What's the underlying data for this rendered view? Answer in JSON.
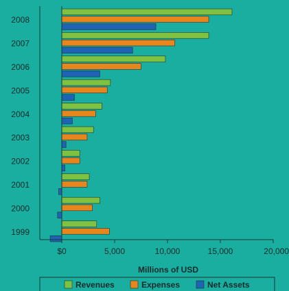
{
  "chart_data": {
    "type": "bar",
    "orientation": "horizontal",
    "categories": [
      "2008",
      "2007",
      "2006",
      "2005",
      "2004",
      "2003",
      "2002",
      "2001",
      "2000",
      "1999"
    ],
    "series": [
      {
        "name": "Revenues",
        "color": "#7fc241",
        "values": [
          16100,
          13900,
          9800,
          4600,
          3800,
          3000,
          1700,
          2600,
          3600,
          3300
        ]
      },
      {
        "name": "Expenses",
        "color": "#e8861e",
        "values": [
          13900,
          10700,
          7500,
          4300,
          3200,
          2400,
          1700,
          2400,
          2900,
          4500
        ]
      },
      {
        "name": "Net Assets",
        "color": "#1f63b4",
        "values": [
          8900,
          6700,
          3600,
          1200,
          1000,
          400,
          300,
          -300,
          -400,
          -1100
        ]
      }
    ],
    "xlabel": "Millions of USD",
    "ylabel": "",
    "x_ticks": [
      "$0",
      "5,000",
      "10,000",
      "15,000",
      "20,000"
    ],
    "x_tick_values": [
      0,
      5000,
      10000,
      15000,
      20000
    ],
    "xlim": [
      -2000,
      20000
    ],
    "grid": false,
    "legend_position": "bottom"
  }
}
